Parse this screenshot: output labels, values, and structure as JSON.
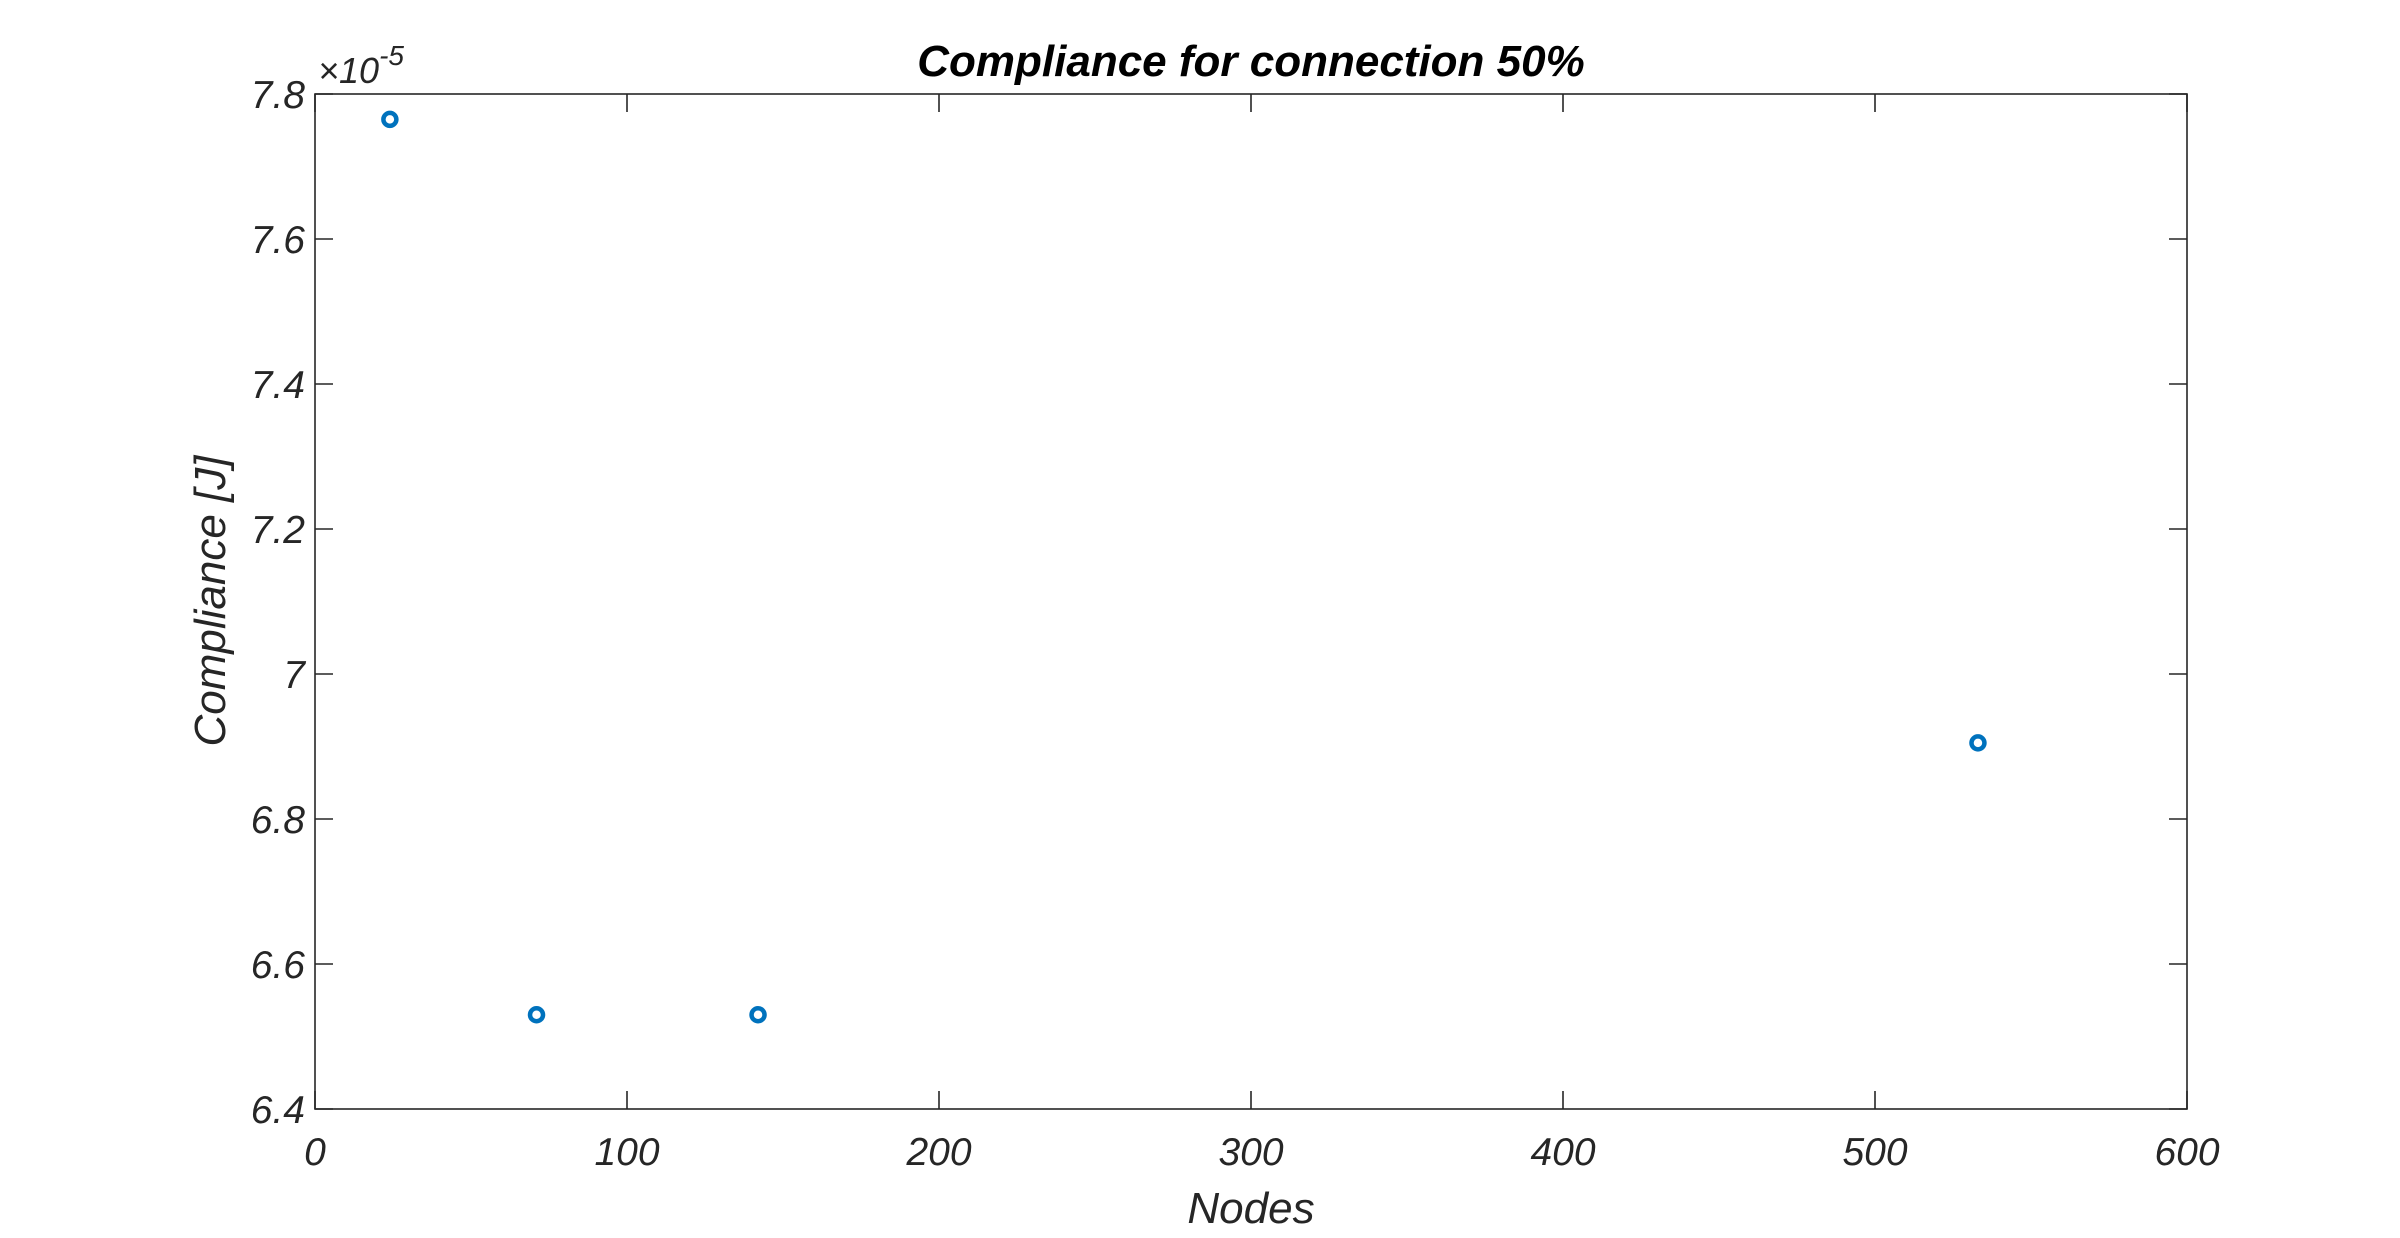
{
  "chart_data": {
    "type": "scatter",
    "title": "Compliance for connection 50%",
    "xlabel": "Nodes",
    "ylabel": "Compliance [J]",
    "y_exponent_base": "×10",
    "y_exponent_power": "-5",
    "xlim": [
      0,
      600
    ],
    "ylim": [
      6.4,
      7.8
    ],
    "x_ticks": [
      0,
      100,
      200,
      300,
      400,
      500,
      600
    ],
    "y_ticks": [
      6.4,
      6.6,
      6.8,
      7.0,
      7.2,
      7.4,
      7.6,
      7.8
    ],
    "x_tick_labels": [
      "0",
      "100",
      "200",
      "300",
      "400",
      "500",
      "600"
    ],
    "y_tick_labels": [
      "6.4",
      "6.6",
      "6.8",
      "7",
      "7.2",
      "7.4",
      "7.6",
      "7.8"
    ],
    "grid": false,
    "series": [
      {
        "marker": "circle",
        "color": "#0072BD",
        "points": [
          {
            "x": 24,
            "y": 7.765
          },
          {
            "x": 71,
            "y": 6.53
          },
          {
            "x": 142,
            "y": 6.53
          },
          {
            "x": 533,
            "y": 6.905
          }
        ]
      }
    ]
  }
}
